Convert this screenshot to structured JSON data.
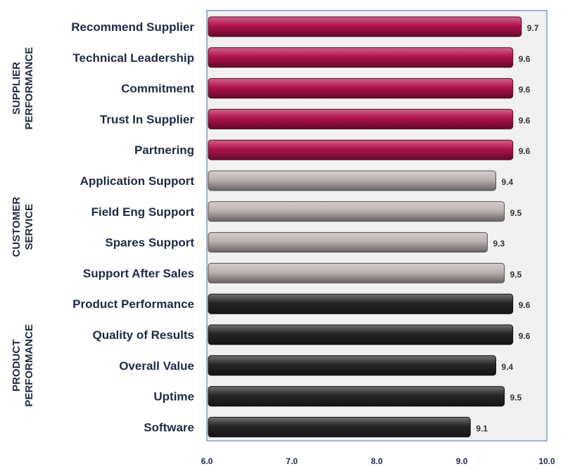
{
  "chart_data": {
    "type": "bar",
    "orientation": "horizontal",
    "categories": [
      "Recommend Supplier",
      "Technical Leadership",
      "Commitment",
      "Trust In Supplier",
      "Partnering",
      "Application Support",
      "Field Eng Support",
      "Spares Support",
      "Support After Sales",
      "Product Performance",
      "Quality of Results",
      "Overall Value",
      "Uptime",
      "Software"
    ],
    "values": [
      9.7,
      9.6,
      9.6,
      9.6,
      9.6,
      9.4,
      9.5,
      9.3,
      9.5,
      9.6,
      9.6,
      9.4,
      9.5,
      9.1
    ],
    "value_labels": [
      "9.7",
      "9.6",
      "9.6",
      "9.6",
      "9.6",
      "9.4",
      "9.5",
      "9.3",
      "9.5",
      "9.6",
      "9.6",
      "9.4",
      "9.5",
      "9.1"
    ],
    "groups": [
      {
        "name_lines": [
          "SUPPLIER",
          "PERFORMANCE"
        ],
        "categories": [
          "Recommend Supplier",
          "Technical Leadership",
          "Commitment",
          "Trust In Supplier",
          "Partnering"
        ],
        "color": "#b3124e"
      },
      {
        "name_lines": [
          "CUSTOMER",
          "SERVICE"
        ],
        "categories": [
          "Application Support",
          "Field Eng Support",
          "Spares Support",
          "Support After Sales"
        ],
        "color": "#bdb2b2"
      },
      {
        "name_lines": [
          "PRODUCT",
          "PERFORMANCE"
        ],
        "categories": [
          "Product Performance",
          "Quality of Results",
          "Overall Value",
          "Uptime",
          "Software"
        ],
        "color": "#262626"
      }
    ],
    "xlim": [
      6.0,
      10.0
    ],
    "xticks": [
      "6.0",
      "7.0",
      "8.0",
      "9.0",
      "10.0"
    ],
    "title": "",
    "xlabel": "",
    "ylabel": "",
    "grid": false,
    "legend": "none",
    "plot_background": "#f1f1f1"
  }
}
